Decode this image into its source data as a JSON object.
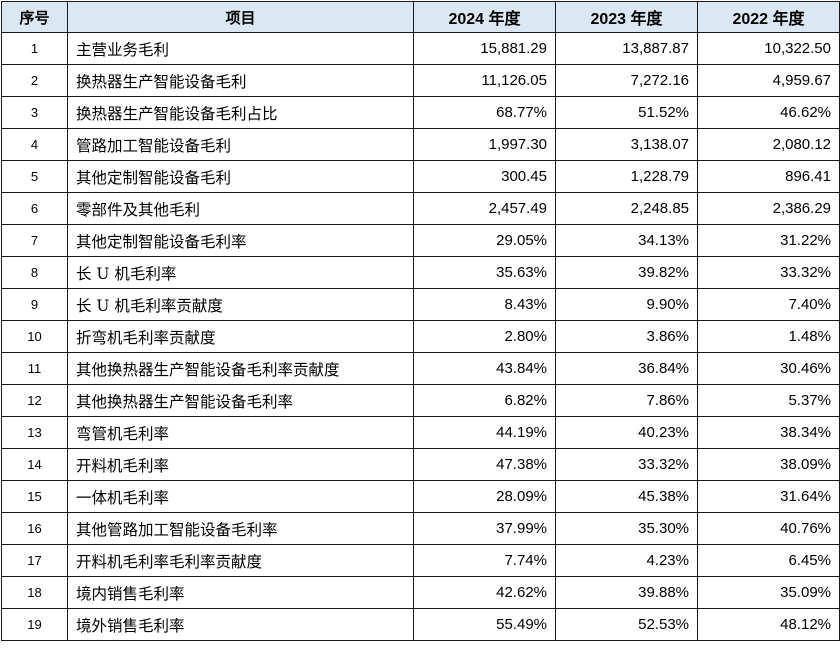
{
  "table": {
    "headers": [
      "序号",
      "项目",
      "2024 年度",
      "2023 年度",
      "2022 年度"
    ],
    "rows": [
      [
        "1",
        "主营业务毛利",
        "15,881.29",
        "13,887.87",
        "10,322.50"
      ],
      [
        "2",
        "换热器生产智能设备毛利",
        "11,126.05",
        "7,272.16",
        "4,959.67"
      ],
      [
        "3",
        "换热器生产智能设备毛利占比",
        "68.77%",
        "51.52%",
        "46.62%"
      ],
      [
        "4",
        "管路加工智能设备毛利",
        "1,997.30",
        "3,138.07",
        "2,080.12"
      ],
      [
        "5",
        "其他定制智能设备毛利",
        "300.45",
        "1,228.79",
        "896.41"
      ],
      [
        "6",
        "零部件及其他毛利",
        "2,457.49",
        "2,248.85",
        "2,386.29"
      ],
      [
        "7",
        "其他定制智能设备毛利率",
        "29.05%",
        "34.13%",
        "31.22%"
      ],
      [
        "8",
        "长 U 机毛利率",
        "35.63%",
        "39.82%",
        "33.32%"
      ],
      [
        "9",
        "长 U 机毛利率贡献度",
        "8.43%",
        "9.90%",
        "7.40%"
      ],
      [
        "10",
        "折弯机毛利率贡献度",
        "2.80%",
        "3.86%",
        "1.48%"
      ],
      [
        "11",
        "其他换热器生产智能设备毛利率贡献度",
        "43.84%",
        "36.84%",
        "30.46%"
      ],
      [
        "12",
        "其他换热器生产智能设备毛利率",
        "6.82%",
        "7.86%",
        "5.37%"
      ],
      [
        "13",
        "弯管机毛利率",
        "44.19%",
        "40.23%",
        "38.34%"
      ],
      [
        "14",
        "开料机毛利率",
        "47.38%",
        "33.32%",
        "38.09%"
      ],
      [
        "15",
        "一体机毛利率",
        "28.09%",
        "45.38%",
        "31.64%"
      ],
      [
        "16",
        "其他管路加工智能设备毛利率",
        "37.99%",
        "35.30%",
        "40.76%"
      ],
      [
        "17",
        "开料机毛利率毛利率贡献度",
        "7.74%",
        "4.23%",
        "6.45%"
      ],
      [
        "18",
        "境内销售毛利率",
        "42.62%",
        "39.88%",
        "35.09%"
      ],
      [
        "19",
        "境外销售毛利率",
        "55.49%",
        "52.53%",
        "48.12%"
      ]
    ]
  }
}
